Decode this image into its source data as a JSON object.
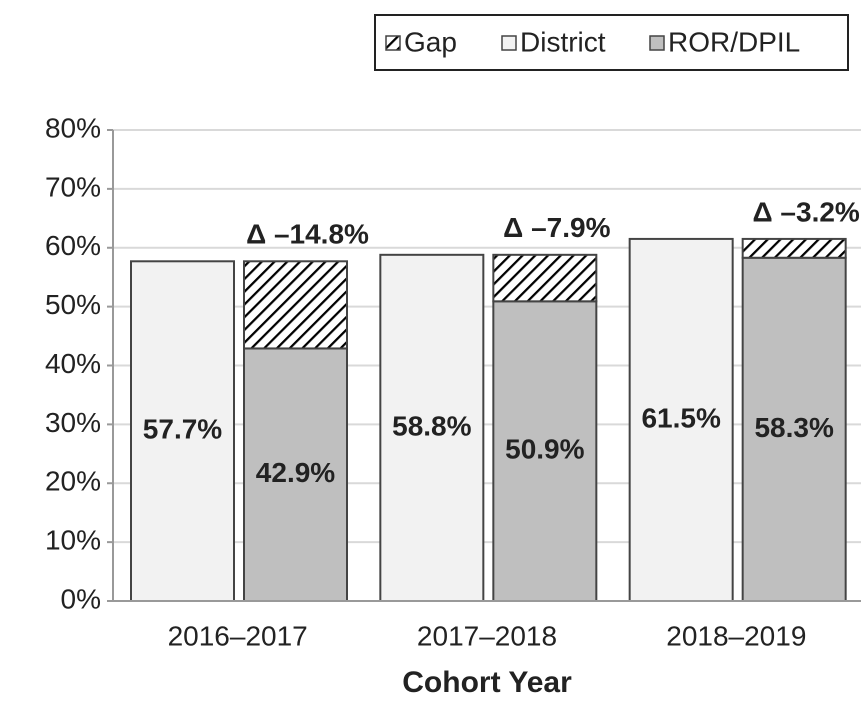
{
  "chart_data": {
    "type": "bar",
    "categories": [
      "2016–2017",
      "2017–2018",
      "2018–2019"
    ],
    "xlabel": "Cohort Year",
    "series": [
      {
        "name": "Gap",
        "color": "#000000",
        "values": [
          14.8,
          7.9,
          3.2
        ],
        "value_labels": [
          "Δ –14.8%",
          "Δ –7.9%",
          "Δ –3.2%"
        ]
      },
      {
        "name": "District",
        "color": "#f2f2f2",
        "values": [
          57.7,
          58.8,
          61.5
        ],
        "value_labels": [
          "57.7%",
          "58.8%",
          "61.5%"
        ]
      },
      {
        "name": "ROR/DPIL",
        "color": "#bfbfbf",
        "values": [
          42.9,
          50.9,
          58.3
        ],
        "value_labels": [
          "42.9%",
          "50.9%",
          "58.3%"
        ]
      }
    ],
    "ylim": [
      0,
      80
    ],
    "yticks": [
      {
        "value": 0,
        "label": "0%"
      },
      {
        "value": 10,
        "label": "10%"
      },
      {
        "value": 20,
        "label": "20%"
      },
      {
        "value": 30,
        "label": "30%"
      },
      {
        "value": 40,
        "label": "40%"
      },
      {
        "value": 50,
        "label": "50%"
      },
      {
        "value": 60,
        "label": "60%"
      },
      {
        "value": 70,
        "label": "70%"
      },
      {
        "value": 80,
        "label": "80%"
      }
    ],
    "grid": true,
    "legend": "top-right"
  }
}
